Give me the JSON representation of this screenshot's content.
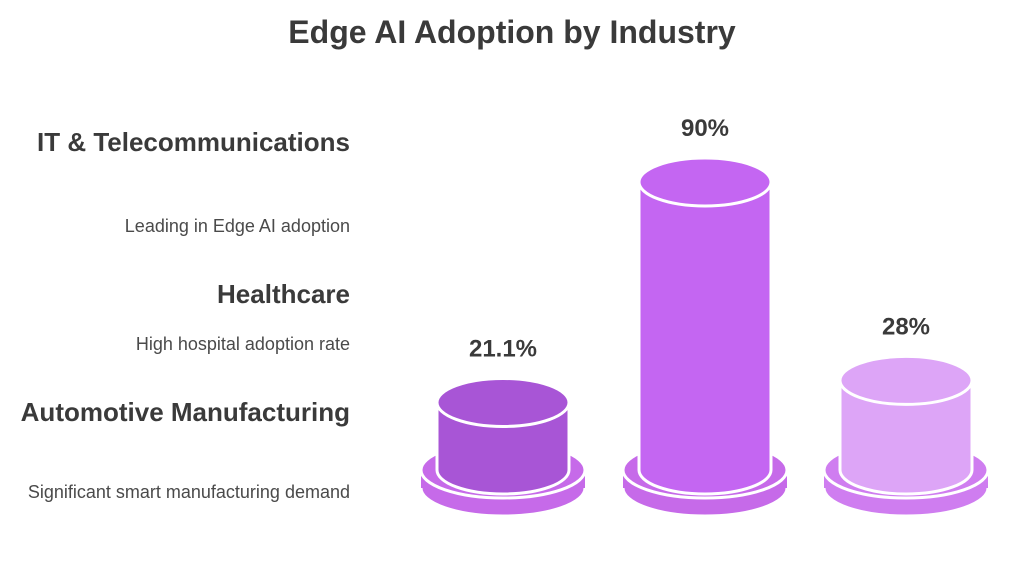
{
  "title": "Edge AI Adoption by Industry",
  "industries": [
    {
      "name": "IT & Telecommunications",
      "description": "Leading in Edge AI adoption"
    },
    {
      "name": "Healthcare",
      "description": "High hospital adoption rate"
    },
    {
      "name": "Automotive Manufacturing",
      "description": "Significant smart manufacturing demand"
    }
  ],
  "chart_data": {
    "type": "bar",
    "title": "Edge AI Adoption by Industry",
    "categories": [
      "",
      "",
      ""
    ],
    "values": [
      21.1,
      90,
      28
    ],
    "value_labels": [
      "21.1%",
      "90%",
      "28%"
    ],
    "colors": [
      "#a855d6",
      "#c466f2",
      "#dda5f7"
    ],
    "base_colors": [
      "#c66ae9",
      "#c66ae9",
      "#cf7df0"
    ]
  }
}
